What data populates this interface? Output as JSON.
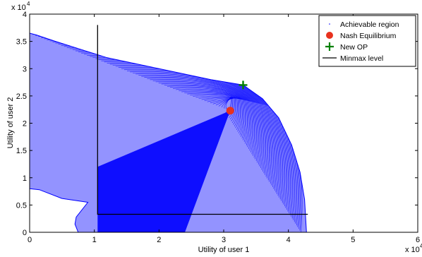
{
  "chart_data": {
    "type": "scatter",
    "xlabel": "Utility of user 1",
    "ylabel": "Utility of user 2",
    "x_exponent_label": "x 10",
    "x_exponent_power": "4",
    "y_exponent_label": "x 10",
    "y_exponent_power": "4",
    "xlim": [
      0,
      60000
    ],
    "ylim": [
      0,
      40000
    ],
    "x_ticks": [
      "0",
      "1",
      "2",
      "3",
      "4",
      "5",
      "6"
    ],
    "y_ticks": [
      "0",
      "0.5",
      "1",
      "1.5",
      "2",
      "2.5",
      "3",
      "3.5",
      "4"
    ],
    "grid": false,
    "legend_position": "top-right",
    "colors": {
      "achievable_region": "#0000ff",
      "nash_equilibrium": "#e8321e",
      "new_op": "#008000",
      "minmax_level": "#000000"
    },
    "series": [
      {
        "name": "Achievable region",
        "kind": "region",
        "boundary_points": [
          [
            0,
            8000
          ],
          [
            0,
            36500
          ],
          [
            1000,
            36200
          ],
          [
            4000,
            35000
          ],
          [
            8000,
            33500
          ],
          [
            12000,
            32000
          ],
          [
            16000,
            31000
          ],
          [
            20000,
            30000
          ],
          [
            24000,
            29000
          ],
          [
            28000,
            28000
          ],
          [
            33000,
            27000
          ],
          [
            36000,
            24500
          ],
          [
            38500,
            21000
          ],
          [
            40500,
            16000
          ],
          [
            41800,
            11000
          ],
          [
            42500,
            6000
          ],
          [
            42800,
            0
          ],
          [
            7500,
            0
          ],
          [
            7000,
            1500
          ],
          [
            7200,
            2800
          ],
          [
            9000,
            5500
          ],
          [
            5000,
            6200
          ],
          [
            1500,
            7800
          ]
        ]
      },
      {
        "name": "Nash Equilibrium",
        "kind": "point",
        "points": [
          [
            31000,
            22300
          ]
        ]
      },
      {
        "name": "New OP",
        "kind": "point",
        "points": [
          [
            33000,
            27000
          ]
        ]
      },
      {
        "name": "Minmax level",
        "kind": "line",
        "points": [
          [
            10500,
            38000
          ],
          [
            10500,
            3300
          ],
          [
            43000,
            3300
          ]
        ]
      }
    ]
  }
}
